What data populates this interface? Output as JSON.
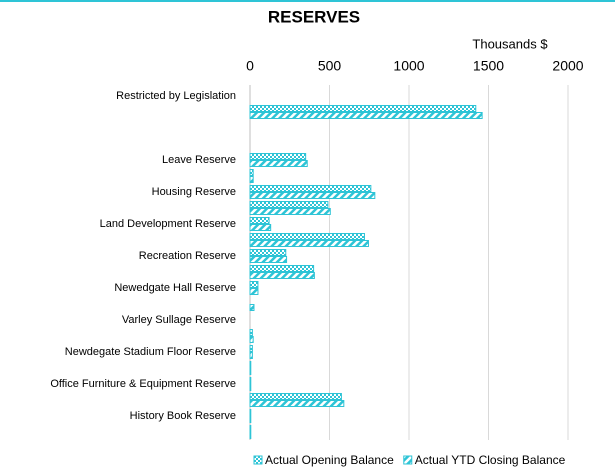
{
  "chart_data": {
    "type": "hbar",
    "title": "RESERVES",
    "axis_label": "Thousands $",
    "categories": [
      "Restricted by Legislation",
      null,
      null,
      null,
      "Leave Reserve",
      null,
      "Housing Reserve",
      null,
      "Land Development Reserve",
      null,
      "Recreation Reserve",
      null,
      "Newedgate Hall Reserve",
      null,
      "Varley Sullage Reserve",
      null,
      "Newdegate Stadium Floor Reserve",
      null,
      "Office Furniture & Equipment Reserve",
      null,
      "History Book Reserve",
      null
    ],
    "series": [
      {
        "name": "Actual Opening Balance",
        "color": "#2ec4d6",
        "values": [
          0,
          1420,
          0,
          0,
          350,
          20,
          760,
          490,
          120,
          720,
          225,
          400,
          50,
          0,
          0,
          15,
          15,
          5,
          5,
          575,
          5,
          5
        ]
      },
      {
        "name": "Actual YTD Closing Balance",
        "color": "#2ec4d6",
        "values": [
          0,
          1460,
          0,
          0,
          360,
          20,
          785,
          505,
          130,
          745,
          230,
          405,
          50,
          25,
          0,
          20,
          15,
          5,
          5,
          590,
          5,
          5
        ]
      }
    ],
    "xlim": [
      0,
      2000
    ],
    "xticks": [
      0,
      500,
      1000,
      1500,
      2000
    ],
    "grid": true,
    "legend": "bottom"
  }
}
